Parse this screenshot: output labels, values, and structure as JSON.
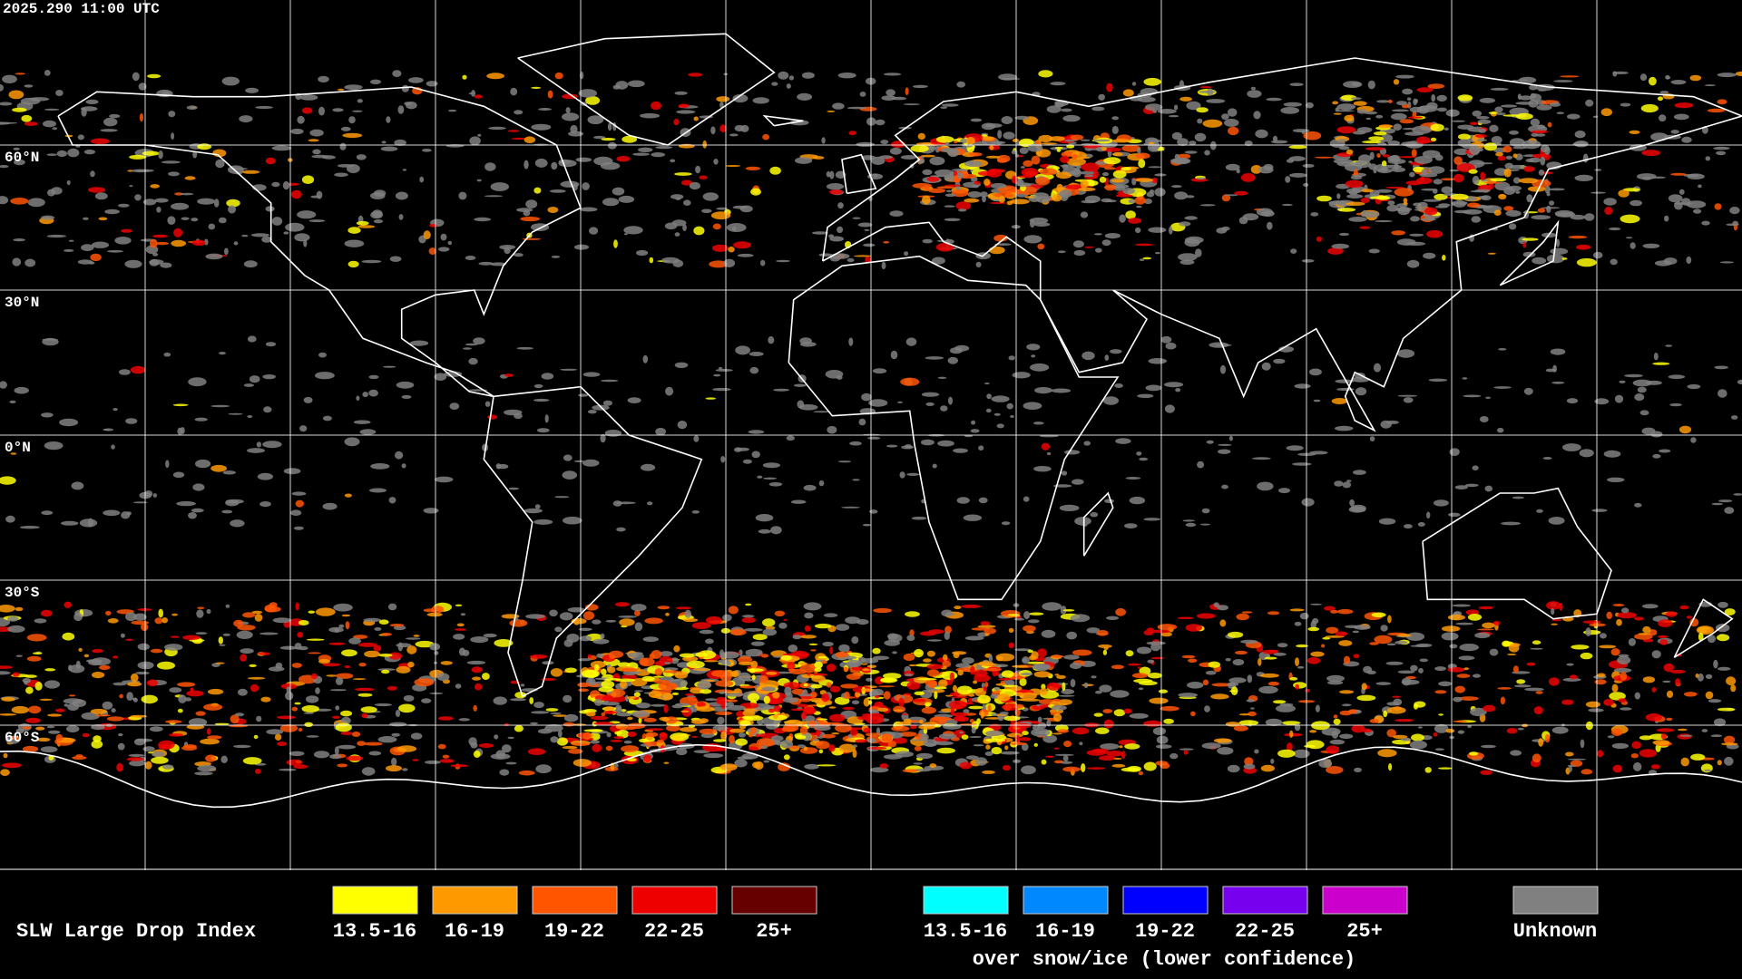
{
  "timestamp": "2025.290 11:00 UTC",
  "latitude_labels": [
    "60°N",
    "30°N",
    "0°N",
    "30°S",
    "60°S"
  ],
  "legend": {
    "title": "SLW Large Drop Index",
    "items": [
      {
        "label": "13.5-16",
        "color": "#ffff00"
      },
      {
        "label": "16-19",
        "color": "#ff9900"
      },
      {
        "label": "19-22",
        "color": "#ff5500"
      },
      {
        "label": "22-25",
        "color": "#ee0000"
      },
      {
        "label": "25+",
        "color": "#660000"
      }
    ],
    "snow_ice_items": [
      {
        "label": "13.5-16",
        "color": "#00ffff"
      },
      {
        "label": "16-19",
        "color": "#0088ff"
      },
      {
        "label": "19-22",
        "color": "#0000ff"
      },
      {
        "label": "22-25",
        "color": "#7700ee"
      },
      {
        "label": "25+",
        "color": "#cc00cc"
      }
    ],
    "snow_ice_caption": "over snow/ice (lower confidence)",
    "unknown": {
      "label": "Unknown",
      "color": "#808080"
    }
  }
}
